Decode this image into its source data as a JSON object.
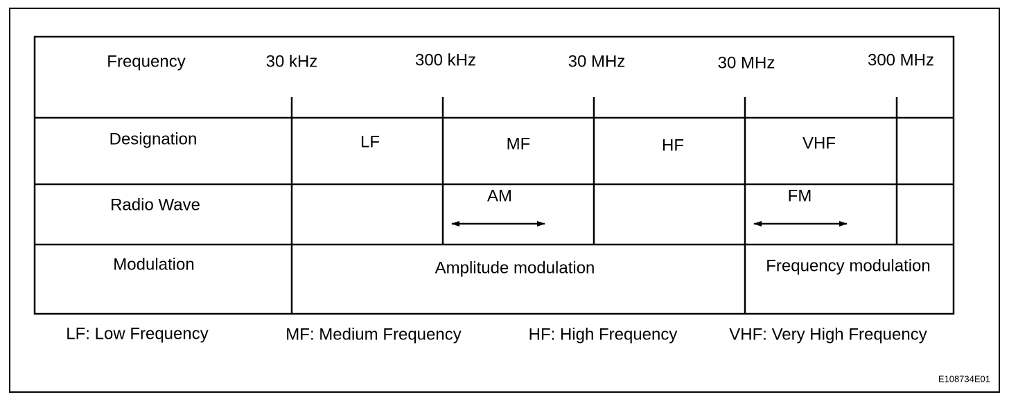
{
  "header": {
    "label": "Frequency",
    "ticks": [
      "30 kHz",
      "300 kHz",
      "30 MHz",
      "30 MHz",
      "300 MHz"
    ]
  },
  "designation": {
    "label": "Designation",
    "bands": [
      "LF",
      "MF",
      "HF",
      "VHF"
    ]
  },
  "radio_wave": {
    "label": "Radio Wave",
    "waves": [
      "AM",
      "FM"
    ]
  },
  "modulation": {
    "label": "Modulation",
    "types": [
      "Amplitude modulation",
      "Frequency modulation"
    ]
  },
  "legend": [
    "LF: Low Frequency",
    "MF: Medium Frequency",
    "HF: High Frequency",
    "VHF: Very High Frequency"
  ],
  "figure_id": "E108734E01"
}
